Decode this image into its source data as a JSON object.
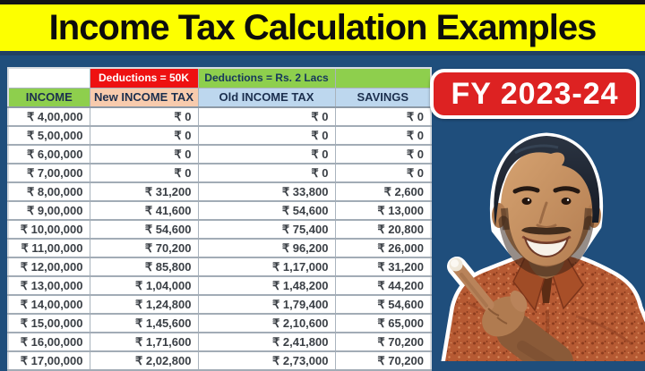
{
  "banner": {
    "title": "Income Tax Calculation Examples"
  },
  "badge": {
    "label": "FY 2023-24"
  },
  "table": {
    "deduction_headers": {
      "income": "",
      "new_tax": "Deductions = 50K",
      "old_tax": "Deductions = Rs. 2 Lacs",
      "savings": ""
    },
    "columns": [
      "INCOME",
      "New INCOME TAX",
      "Old INCOME TAX",
      "SAVINGS"
    ],
    "rows": [
      [
        "₹ 4,00,000",
        "₹ 0",
        "₹ 0",
        "₹ 0"
      ],
      [
        "₹ 5,00,000",
        "₹ 0",
        "₹ 0",
        "₹ 0"
      ],
      [
        "₹ 6,00,000",
        "₹ 0",
        "₹ 0",
        "₹ 0"
      ],
      [
        "₹ 7,00,000",
        "₹ 0",
        "₹ 0",
        "₹ 0"
      ],
      [
        "₹ 8,00,000",
        "₹ 31,200",
        "₹ 33,800",
        "₹ 2,600"
      ],
      [
        "₹ 9,00,000",
        "₹ 41,600",
        "₹ 54,600",
        "₹ 13,000"
      ],
      [
        "₹ 10,00,000",
        "₹ 54,600",
        "₹ 75,400",
        "₹ 20,800"
      ],
      [
        "₹ 11,00,000",
        "₹ 70,200",
        "₹ 96,200",
        "₹ 26,000"
      ],
      [
        "₹ 12,00,000",
        "₹ 85,800",
        "₹ 1,17,000",
        "₹ 31,200"
      ],
      [
        "₹ 13,00,000",
        "₹ 1,04,000",
        "₹ 1,48,200",
        "₹ 44,200"
      ],
      [
        "₹ 14,00,000",
        "₹ 1,24,800",
        "₹ 1,79,400",
        "₹ 54,600"
      ],
      [
        "₹ 15,00,000",
        "₹ 1,45,600",
        "₹ 2,10,600",
        "₹ 65,000"
      ],
      [
        "₹ 16,00,000",
        "₹ 1,71,600",
        "₹ 2,41,800",
        "₹ 70,200"
      ],
      [
        "₹ 17,00,000",
        "₹ 2,02,800",
        "₹ 2,73,000",
        "₹ 70,200"
      ]
    ]
  },
  "person": {
    "description": "smiling-man-pointing-at-table-photo"
  },
  "colors": {
    "background": "#1f4e7c",
    "top_strip": "#141414",
    "banner_bg": "#fdff00",
    "banner_text": "#0d0d0d",
    "badge_bg": "#dd2222",
    "badge_border": "#ffffff",
    "badge_text": "#ffffff",
    "header_red": "#ee1111",
    "header_green": "#8ecf4d",
    "header_peach": "#f8cbad",
    "header_blue": "#bdd7ee",
    "table_text": "#3a3f45"
  }
}
